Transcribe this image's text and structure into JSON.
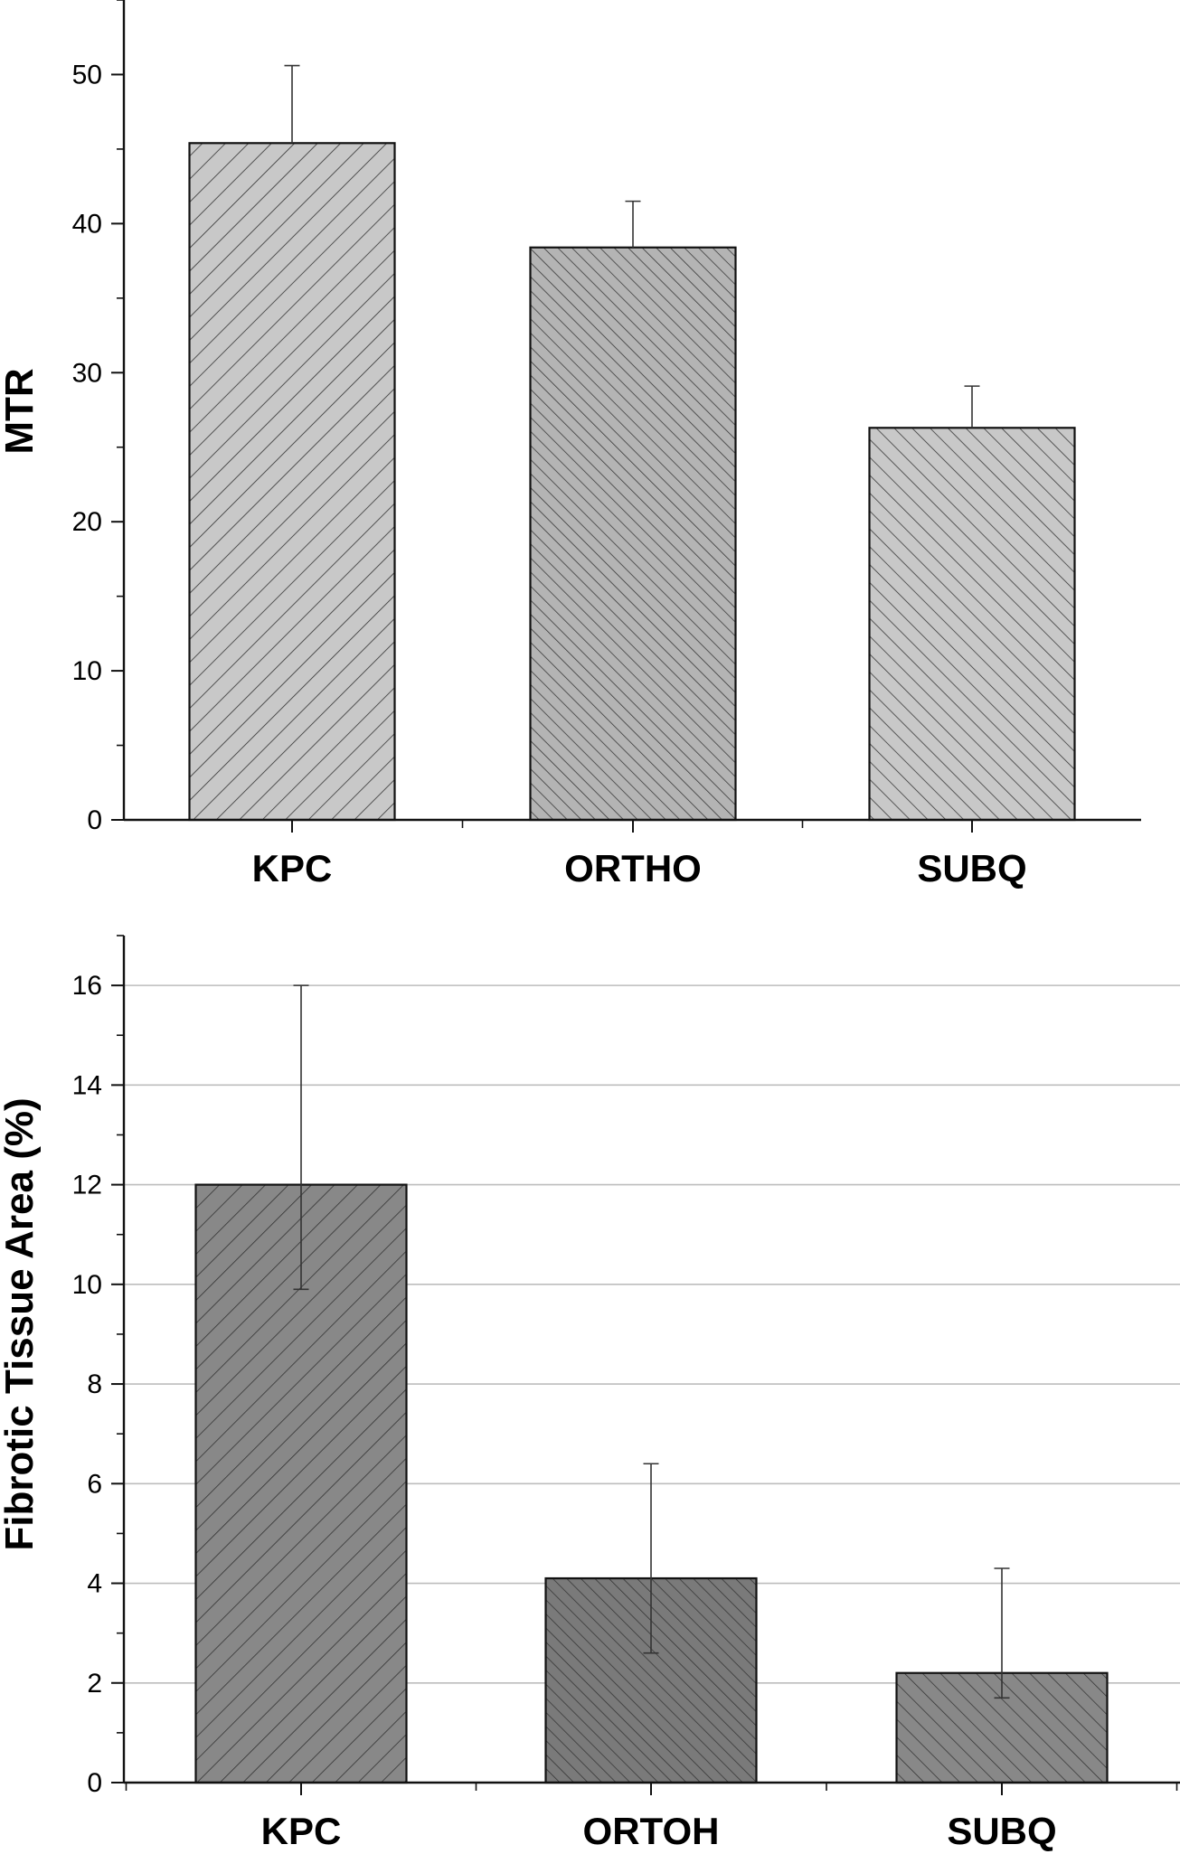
{
  "chart_data": [
    {
      "type": "bar",
      "categories": [
        "KPC",
        "ORTHO",
        "SUBQ"
      ],
      "values": [
        45.4,
        38.4,
        26.3
      ],
      "errors": [
        5.2,
        3.1,
        2.8
      ],
      "title": "",
      "xlabel": "",
      "ylabel": "MTR",
      "ylim": [
        0,
        55
      ],
      "yticks": [
        0,
        10,
        20,
        30,
        40,
        50
      ],
      "grid": false,
      "bar_colors": [
        "#c8c8c8",
        "#b4b4b4",
        "#c8c8c8"
      ],
      "hatch": [
        "/",
        "\\",
        "\\"
      ]
    },
    {
      "type": "bar",
      "categories": [
        "KPC",
        "ORTOH",
        "SUBQ"
      ],
      "values": [
        12.0,
        4.1,
        2.2
      ],
      "errors_upper": [
        4.0,
        2.3,
        2.1
      ],
      "errors_lower": [
        2.1,
        1.5,
        0.5
      ],
      "title": "",
      "xlabel": "",
      "ylabel": "Fibrotic Tissue Area (%)",
      "ylim": [
        0,
        17
      ],
      "yticks": [
        0,
        2,
        4,
        6,
        8,
        10,
        12,
        14,
        16
      ],
      "grid": true,
      "bar_colors": [
        "#888888",
        "#7a7a7a",
        "#888888"
      ],
      "hatch": [
        "/",
        "\\",
        "\\"
      ]
    }
  ]
}
